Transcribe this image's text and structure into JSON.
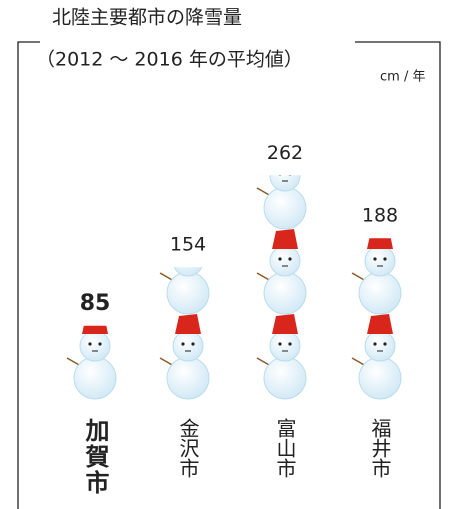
{
  "chart_data": {
    "type": "pictograph",
    "title": "北陸主要都市の降雪量",
    "subtitle": "（2012 ～ 2016 年の平均値）",
    "unit": "cm / 年",
    "categories": [
      "加賀市",
      "金沢市",
      "富山市",
      "福井市"
    ],
    "values": [
      85,
      154,
      262,
      188
    ],
    "highlight": 0,
    "hat_color": "#d9261c"
  }
}
